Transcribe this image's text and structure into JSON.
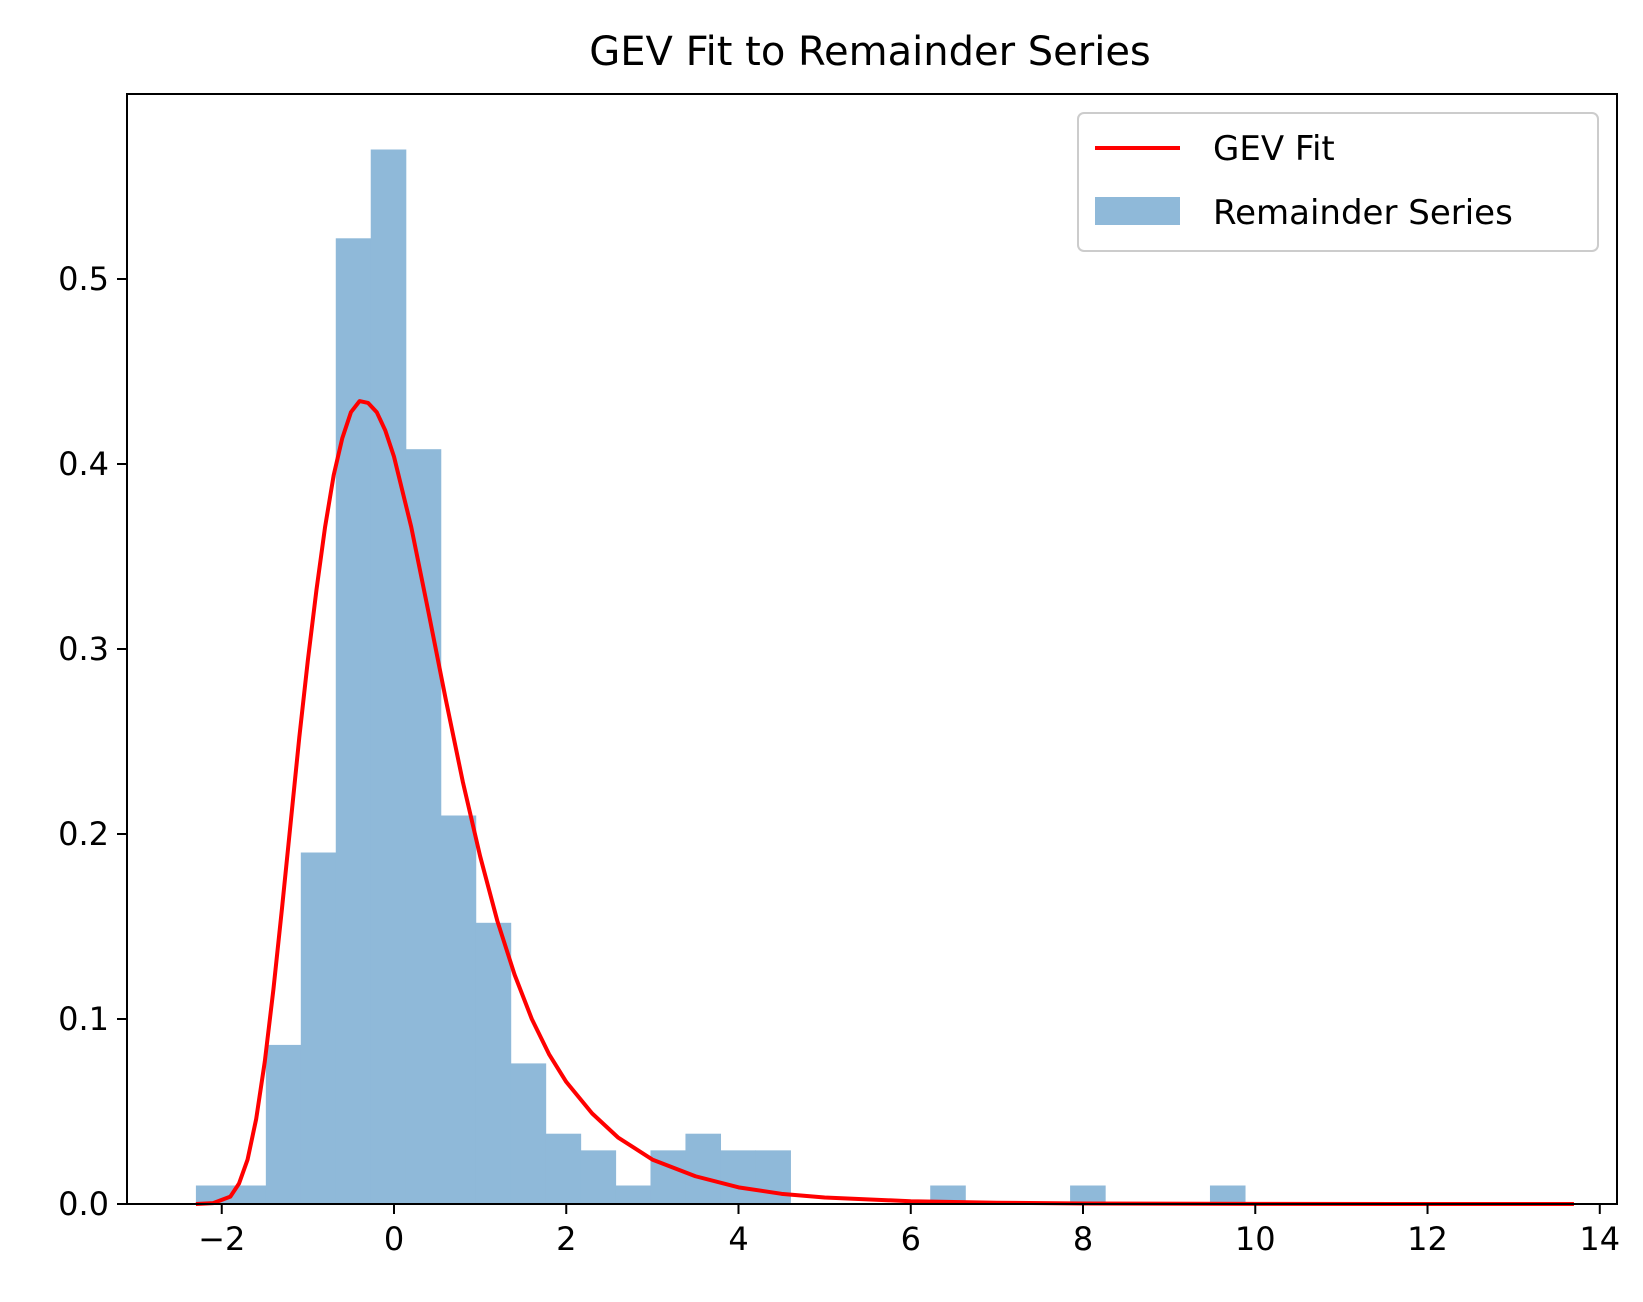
{
  "chart_data": {
    "type": "bar",
    "title": "GEV Fit to Remainder Series",
    "xlabel": "",
    "ylabel": "",
    "xlim": [
      -3.1,
      14.2
    ],
    "ylim": [
      0,
      0.6
    ],
    "x_ticks": [
      -2,
      0,
      2,
      4,
      6,
      8,
      10,
      12,
      14
    ],
    "x_tick_labels": [
      "−2",
      "0",
      "2",
      "4",
      "6",
      "8",
      "10",
      "12",
      "14"
    ],
    "y_ticks": [
      0.0,
      0.1,
      0.2,
      0.3,
      0.4,
      0.5
    ],
    "y_tick_labels": [
      "0.0",
      "0.1",
      "0.2",
      "0.3",
      "0.4",
      "0.5"
    ],
    "grid": false,
    "legend_position": "top-right",
    "legend": [
      "GEV Fit",
      "Remainder Series"
    ],
    "histogram": {
      "name": "Remainder Series",
      "color": "#8fb9d9",
      "bin_edges": [
        -2.3,
        -1.894,
        -1.488,
        -1.082,
        -0.676,
        -0.27,
        0.136,
        0.542,
        0.948,
        1.354,
        1.76,
        2.166,
        2.572,
        2.978,
        3.384,
        3.79,
        4.196,
        4.602,
        5.008,
        5.414,
        5.82,
        6.226,
        6.632,
        7.038,
        7.444,
        7.85,
        8.256,
        8.662,
        9.068,
        9.474,
        9.88
      ],
      "densities": [
        0.01,
        0.01,
        0.086,
        0.19,
        0.522,
        0.57,
        0.408,
        0.21,
        0.152,
        0.076,
        0.038,
        0.029,
        0.01,
        0.029,
        0.038,
        0.029,
        0.029,
        0,
        0,
        0,
        0,
        0.01,
        0,
        0,
        0,
        0.01,
        0,
        0,
        0,
        0.01
      ]
    },
    "series": [
      {
        "name": "GEV Fit",
        "color": "#ff0000",
        "x": [
          -2.3,
          -2.1,
          -1.9,
          -1.8,
          -1.7,
          -1.6,
          -1.5,
          -1.4,
          -1.3,
          -1.2,
          -1.1,
          -1.0,
          -0.9,
          -0.8,
          -0.7,
          -0.6,
          -0.5,
          -0.4,
          -0.3,
          -0.2,
          -0.1,
          0.0,
          0.2,
          0.4,
          0.6,
          0.8,
          1.0,
          1.2,
          1.4,
          1.6,
          1.8,
          2.0,
          2.3,
          2.6,
          3.0,
          3.5,
          4.0,
          4.5,
          5.0,
          6.0,
          7.0,
          8.0,
          10.0,
          12.0,
          13.7
        ],
        "y": [
          0.0,
          0.0005,
          0.004,
          0.011,
          0.024,
          0.046,
          0.077,
          0.116,
          0.16,
          0.206,
          0.252,
          0.294,
          0.332,
          0.366,
          0.394,
          0.414,
          0.428,
          0.434,
          0.433,
          0.428,
          0.418,
          0.404,
          0.366,
          0.32,
          0.273,
          0.228,
          0.188,
          0.153,
          0.124,
          0.1,
          0.081,
          0.066,
          0.049,
          0.036,
          0.024,
          0.015,
          0.009,
          0.0055,
          0.0035,
          0.0015,
          0.0007,
          0.0003,
          0.0001,
          0.0,
          0.0
        ]
      }
    ]
  }
}
